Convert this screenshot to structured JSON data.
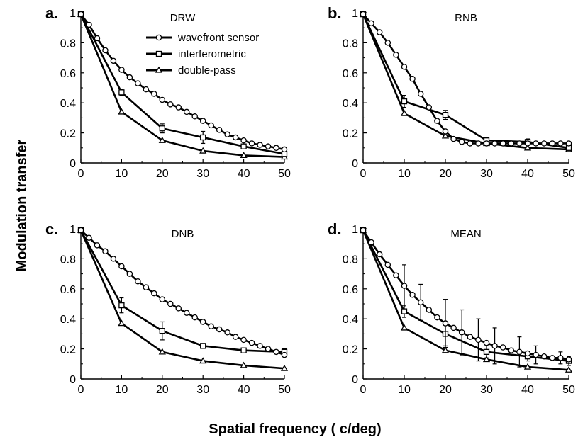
{
  "figure": {
    "xlabel": "Spatial frequency ( c/deg)",
    "ylabel": "Modulation transfer"
  },
  "legend": [
    "wavefront sensor",
    "interferometric",
    "double-pass"
  ],
  "markers": {
    "wavefront sensor": "circle",
    "interferometric": "square",
    "double-pass": "triangle"
  },
  "colors": {
    "line": "#000000",
    "marker_fill": "#ffffff"
  },
  "chart_data": [
    {
      "type": "line",
      "panel_letter": "a.",
      "title": "DRW",
      "xlim": [
        0,
        50
      ],
      "ylim": [
        0,
        1
      ],
      "xticks": [
        "0",
        "10",
        "20",
        "30",
        "40",
        "50"
      ],
      "yticks": [
        "0",
        "0.2",
        "0.4",
        "0.6",
        "0.8",
        "1"
      ],
      "series": [
        {
          "name": "wavefront sensor",
          "x": [
            0,
            2,
            4,
            6,
            8,
            10,
            12,
            14,
            16,
            18,
            20,
            22,
            24,
            26,
            28,
            30,
            32,
            34,
            36,
            38,
            40,
            42,
            44,
            46,
            48,
            50
          ],
          "values": [
            0.99,
            0.92,
            0.83,
            0.75,
            0.68,
            0.62,
            0.57,
            0.53,
            0.49,
            0.46,
            0.42,
            0.39,
            0.37,
            0.34,
            0.31,
            0.28,
            0.25,
            0.22,
            0.19,
            0.17,
            0.15,
            0.13,
            0.12,
            0.11,
            0.1,
            0.09
          ]
        },
        {
          "name": "interferometric",
          "x": [
            0,
            10,
            20,
            30,
            40,
            50
          ],
          "values": [
            0.99,
            0.47,
            0.23,
            0.17,
            0.11,
            0.06
          ],
          "err": [
            0,
            0.02,
            0.03,
            0.04,
            0.01,
            0.01
          ]
        },
        {
          "name": "double-pass",
          "x": [
            0,
            10,
            20,
            30,
            40,
            50
          ],
          "values": [
            0.99,
            0.34,
            0.15,
            0.08,
            0.05,
            0.04
          ],
          "err": [
            0,
            0,
            0,
            0,
            0,
            0
          ]
        }
      ]
    },
    {
      "type": "line",
      "panel_letter": "b.",
      "title": "RNB",
      "xlim": [
        0,
        50
      ],
      "ylim": [
        0,
        1
      ],
      "xticks": [
        "0",
        "10",
        "20",
        "30",
        "40",
        "50"
      ],
      "yticks": [
        "0",
        "0.2",
        "0.4",
        "0.6",
        "0.8",
        "1"
      ],
      "series": [
        {
          "name": "wavefront sensor",
          "x": [
            0,
            2,
            4,
            6,
            8,
            10,
            12,
            14,
            16,
            18,
            20,
            22,
            24,
            26,
            28,
            30,
            32,
            34,
            36,
            38,
            40,
            42,
            44,
            46,
            48,
            50
          ],
          "values": [
            0.99,
            0.93,
            0.87,
            0.8,
            0.72,
            0.64,
            0.56,
            0.46,
            0.37,
            0.28,
            0.21,
            0.16,
            0.14,
            0.13,
            0.13,
            0.13,
            0.13,
            0.13,
            0.13,
            0.13,
            0.13,
            0.13,
            0.13,
            0.13,
            0.13,
            0.13
          ]
        },
        {
          "name": "interferometric",
          "x": [
            0,
            10,
            20,
            30,
            40,
            50
          ],
          "values": [
            0.99,
            0.41,
            0.32,
            0.15,
            0.14,
            0.1
          ],
          "err": [
            0,
            0.04,
            0.03,
            0.02,
            0.02,
            0.01
          ]
        },
        {
          "name": "double-pass",
          "x": [
            0,
            10,
            20,
            30,
            40,
            50
          ],
          "values": [
            0.99,
            0.33,
            0.18,
            0.13,
            0.1,
            0.09
          ],
          "err": [
            0,
            0,
            0,
            0,
            0,
            0
          ]
        }
      ]
    },
    {
      "type": "line",
      "panel_letter": "c.",
      "title": "DNB",
      "xlim": [
        0,
        50
      ],
      "ylim": [
        0,
        1
      ],
      "xticks": [
        "0",
        "10",
        "20",
        "30",
        "40",
        "50"
      ],
      "yticks": [
        "0",
        "0.2",
        "0.4",
        "0.6",
        "0.8",
        "1"
      ],
      "series": [
        {
          "name": "wavefront sensor",
          "x": [
            0,
            2,
            4,
            6,
            8,
            10,
            12,
            14,
            16,
            18,
            20,
            22,
            24,
            26,
            28,
            30,
            32,
            34,
            36,
            38,
            40,
            42,
            44,
            46,
            48,
            50
          ],
          "values": [
            0.99,
            0.94,
            0.89,
            0.85,
            0.8,
            0.75,
            0.7,
            0.65,
            0.61,
            0.57,
            0.53,
            0.5,
            0.47,
            0.44,
            0.41,
            0.38,
            0.35,
            0.33,
            0.31,
            0.28,
            0.26,
            0.24,
            0.22,
            0.2,
            0.18,
            0.16
          ]
        },
        {
          "name": "interferometric",
          "x": [
            0,
            10,
            20,
            30,
            40,
            50
          ],
          "values": [
            0.99,
            0.49,
            0.32,
            0.22,
            0.19,
            0.18
          ],
          "err": [
            0,
            0.05,
            0.06,
            0.01,
            0.01,
            0.02
          ]
        },
        {
          "name": "double-pass",
          "x": [
            0,
            10,
            20,
            30,
            40,
            50
          ],
          "values": [
            0.99,
            0.37,
            0.18,
            0.12,
            0.09,
            0.07
          ],
          "err": [
            0,
            0,
            0,
            0,
            0,
            0
          ]
        }
      ]
    },
    {
      "type": "line",
      "panel_letter": "d.",
      "title": "MEAN",
      "xlim": [
        0,
        50
      ],
      "ylim": [
        0,
        1
      ],
      "xticks": [
        "0",
        "10",
        "20",
        "30",
        "40",
        "50"
      ],
      "yticks": [
        "0",
        "0.2",
        "0.4",
        "0.6",
        "0.8",
        "1"
      ],
      "series": [
        {
          "name": "wavefront sensor",
          "x": [
            0,
            2,
            4,
            6,
            8,
            10,
            12,
            14,
            16,
            18,
            20,
            22,
            24,
            26,
            28,
            30,
            32,
            34,
            36,
            38,
            40,
            42,
            44,
            46,
            48,
            50
          ],
          "values": [
            0.99,
            0.91,
            0.83,
            0.76,
            0.69,
            0.62,
            0.56,
            0.51,
            0.46,
            0.41,
            0.37,
            0.34,
            0.31,
            0.28,
            0.26,
            0.24,
            0.22,
            0.21,
            0.19,
            0.18,
            0.17,
            0.16,
            0.15,
            0.14,
            0.14,
            0.13
          ],
          "err": [
            0,
            0,
            0,
            0,
            0,
            0.14,
            0,
            0.12,
            0,
            0,
            0.16,
            0,
            0.15,
            0,
            0.14,
            0,
            0.12,
            0,
            0,
            0.1,
            0,
            0.06,
            0,
            0,
            0.04,
            0
          ]
        },
        {
          "name": "interferometric",
          "x": [
            0,
            10,
            20,
            30,
            40,
            50
          ],
          "values": [
            0.99,
            0.45,
            0.3,
            0.18,
            0.15,
            0.12
          ],
          "err": [
            0,
            0.04,
            0.08,
            0.04,
            0.03,
            0.03
          ]
        },
        {
          "name": "double-pass",
          "x": [
            0,
            10,
            20,
            30,
            40,
            50
          ],
          "values": [
            0.99,
            0.34,
            0.19,
            0.13,
            0.08,
            0.06
          ],
          "err": [
            0,
            0,
            0,
            0,
            0,
            0
          ]
        }
      ]
    }
  ]
}
